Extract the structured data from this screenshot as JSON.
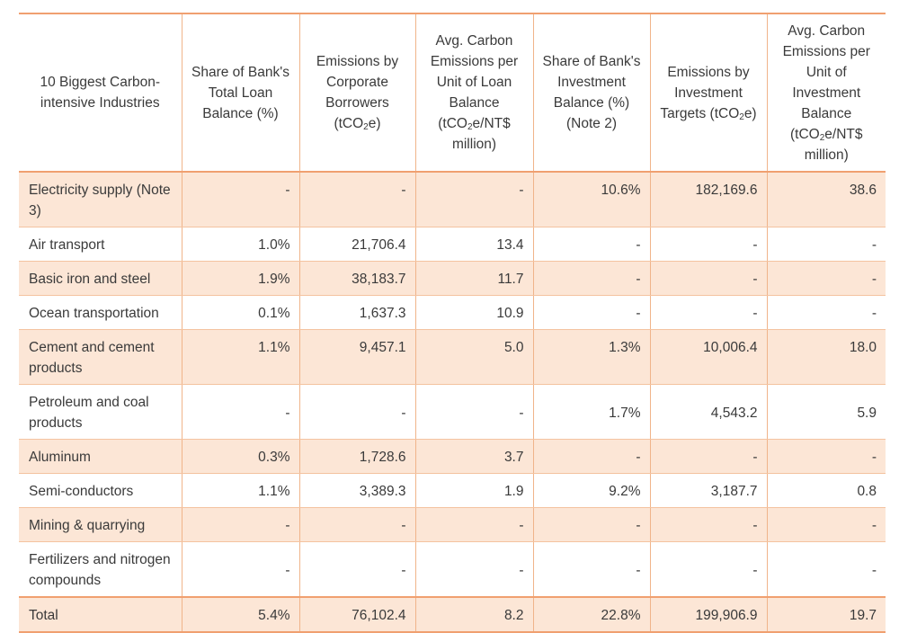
{
  "headers": {
    "industry": "10 Biggest Carbon-intensive Industries",
    "loan_share": "Share of Bank's Total Loan Balance (%)",
    "emissions_borrowers_pre": "Emissions by Corporate Borrowers (tCO",
    "emissions_borrowers_post": "e)",
    "avg_loan_pre": "Avg. Carbon Emissions per Unit of Loan Balance (tCO",
    "avg_loan_post": "e/NT$ million)",
    "invest_share": "Share of Bank's Investment Balance (%) (Note 2)",
    "emissions_targets_pre": "Emissions by Investment Targets (tCO",
    "emissions_targets_post": "e)",
    "avg_invest_pre": "Avg. Carbon Emissions per Unit of Investment Balance (tCO",
    "avg_invest_post": "e/NT$ million)",
    "subscript": "2"
  },
  "rows": [
    {
      "industry": "Electricity supply (Note 3)",
      "loan_share": "-",
      "emissions_borrowers": "-",
      "avg_loan": "-",
      "invest_share": "10.6%",
      "emissions_targets": "182,169.6",
      "avg_invest": "38.6"
    },
    {
      "industry": "Air transport",
      "loan_share": "1.0%",
      "emissions_borrowers": "21,706.4",
      "avg_loan": "13.4",
      "invest_share": "-",
      "emissions_targets": "-",
      "avg_invest": "-"
    },
    {
      "industry": "Basic iron and steel",
      "loan_share": "1.9%",
      "emissions_borrowers": "38,183.7",
      "avg_loan": "11.7",
      "invest_share": "-",
      "emissions_targets": "-",
      "avg_invest": "-"
    },
    {
      "industry": "Ocean transportation",
      "loan_share": "0.1%",
      "emissions_borrowers": "1,637.3",
      "avg_loan": "10.9",
      "invest_share": "-",
      "emissions_targets": "-",
      "avg_invest": "-"
    },
    {
      "industry": "Cement and cement products",
      "loan_share": "1.1%",
      "emissions_borrowers": "9,457.1",
      "avg_loan": "5.0",
      "invest_share": "1.3%",
      "emissions_targets": "10,006.4",
      "avg_invest": "18.0"
    },
    {
      "industry": "Petroleum and coal products",
      "loan_share": "-",
      "emissions_borrowers": "-",
      "avg_loan": "-",
      "invest_share": "1.7%",
      "emissions_targets": "4,543.2",
      "avg_invest": "5.9"
    },
    {
      "industry": "Aluminum",
      "loan_share": "0.3%",
      "emissions_borrowers": "1,728.6",
      "avg_loan": "3.7",
      "invest_share": "-",
      "emissions_targets": "-",
      "avg_invest": "-"
    },
    {
      "industry": "Semi-conductors",
      "loan_share": "1.1%",
      "emissions_borrowers": "3,389.3",
      "avg_loan": "1.9",
      "invest_share": "9.2%",
      "emissions_targets": "3,187.7",
      "avg_invest": "0.8"
    },
    {
      "industry": "Mining & quarrying",
      "loan_share": "-",
      "emissions_borrowers": "-",
      "avg_loan": "-",
      "invest_share": "-",
      "emissions_targets": "-",
      "avg_invest": "-"
    },
    {
      "industry": "Fertilizers and nitrogen compounds",
      "loan_share": "-",
      "emissions_borrowers": "-",
      "avg_loan": "-",
      "invest_share": "-",
      "emissions_targets": "-",
      "avg_invest": "-"
    }
  ],
  "total": {
    "industry": "Total",
    "loan_share": "5.4%",
    "emissions_borrowers": "76,102.4",
    "avg_loan": "8.2",
    "invest_share": "22.8%",
    "emissions_targets": "199,906.9",
    "avg_invest": "19.7"
  },
  "colors": {
    "border": "#f0a070",
    "shade": "#fce6d6",
    "text": "#3a3a3a"
  }
}
